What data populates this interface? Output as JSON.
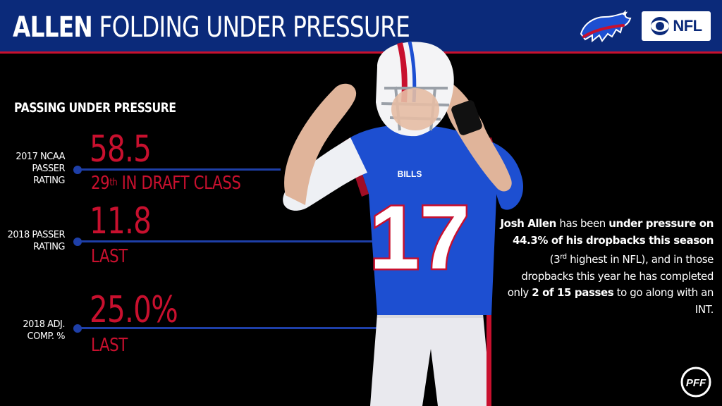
{
  "header": {
    "title_bold": "ALLEN",
    "title_rest": "FOLDING UNDER PRESSURE",
    "team_logo_icon": "bills-logo",
    "network_logo_icon": "cbs-eye-icon",
    "network_text": "NFL",
    "background_color": "#0b2a7a",
    "accent_color": "#c8102e"
  },
  "section_title": "PASSING UNDER PRESSURE",
  "stats": [
    {
      "label_line1": "2017 NCAA",
      "label_line2": "PASSER RATING",
      "value": "58.5",
      "sub_rank": "29",
      "sub_suffix": "th",
      "sub_rest": " IN DRAFT CLASS"
    },
    {
      "label_line1": "2018 PASSER",
      "label_line2": "RATING",
      "value": "11.8",
      "sub": "LAST"
    },
    {
      "label_line1": "2018 ADJ.",
      "label_line2": "COMP. %",
      "value": "25.0%",
      "sub": "LAST"
    }
  ],
  "player": {
    "jersey_number": "17",
    "chest_text": "BILLS"
  },
  "blurb": {
    "p1": "Josh Allen",
    "p2": " has been ",
    "p3": "under pressure on 44.3% of his dropbacks this season",
    "p4": " (3",
    "p5": "rd",
    "p6": " highest in NFL), and in those dropbacks this year he has completed only ",
    "p7": "2 of 15 passes",
    "p8": " to go along with an INT",
    "p9": "."
  },
  "footer": {
    "logo_icon": "pff-logo"
  },
  "colors": {
    "stat_red": "#c8102e",
    "line_blue": "#1e3fa8",
    "jersey_blue": "#1d4fd1"
  }
}
